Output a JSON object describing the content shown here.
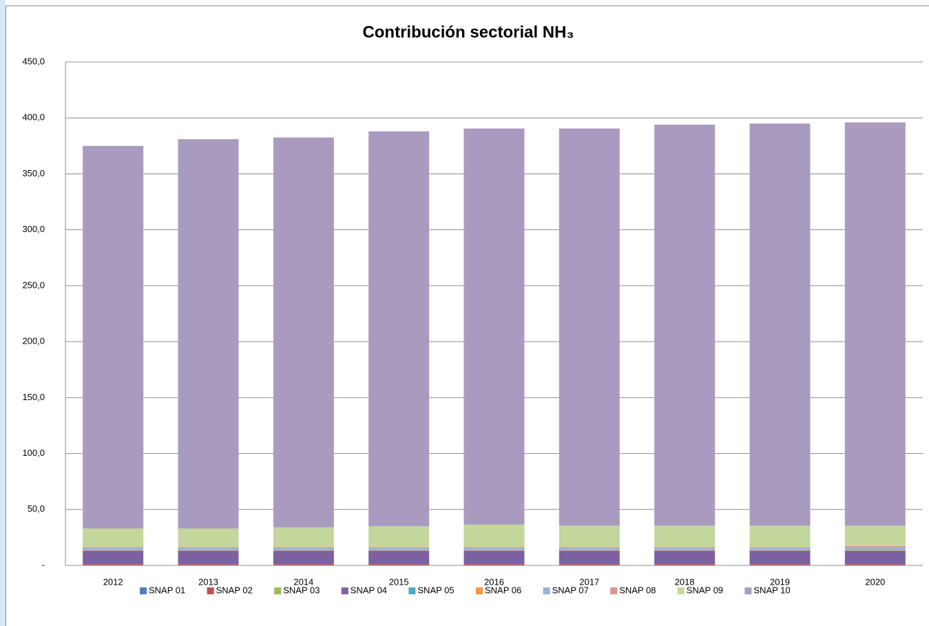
{
  "chart_data": {
    "type": "stacked_bar",
    "title": "Contribución sectorial NH₃",
    "categories": [
      "2012",
      "2013",
      "2014",
      "2015",
      "2016",
      "2017",
      "2018",
      "2019",
      "2020"
    ],
    "series": [
      {
        "name": "SNAP 01",
        "color": "#4f81bd",
        "values": [
          0.1,
          0.1,
          0.1,
          0.1,
          0.1,
          0.1,
          0.1,
          0.1,
          0.1
        ]
      },
      {
        "name": "SNAP 02",
        "color": "#c0504d",
        "values": [
          0.8,
          0.8,
          0.8,
          0.8,
          0.8,
          0.8,
          0.8,
          0.8,
          0.8
        ]
      },
      {
        "name": "SNAP 03",
        "color": "#9bbb59",
        "values": [
          0.1,
          0.1,
          0.1,
          0.1,
          0.1,
          0.1,
          0.1,
          0.1,
          0.1
        ]
      },
      {
        "name": "SNAP 04",
        "color": "#7d60a0",
        "values": [
          12,
          12,
          12,
          12,
          12,
          12,
          12,
          12,
          12
        ]
      },
      {
        "name": "SNAP 05",
        "color": "#4bacc6",
        "values": [
          0.3,
          0.3,
          0.3,
          0.3,
          0.3,
          0.3,
          0.3,
          0.3,
          0.3
        ]
      },
      {
        "name": "SNAP 06",
        "color": "#f79646",
        "values": [
          0.5,
          0.5,
          0.5,
          0.5,
          0.5,
          0.5,
          0.5,
          0.5,
          0.5
        ]
      },
      {
        "name": "SNAP 07",
        "color": "#95b3d7",
        "values": [
          2,
          2,
          2,
          2,
          2,
          2,
          2,
          2,
          2
        ]
      },
      {
        "name": "SNAP 08",
        "color": "#d99694",
        "values": [
          0.5,
          0.5,
          0.5,
          0.5,
          0.5,
          0.5,
          0.5,
          0.5,
          1.5
        ]
      },
      {
        "name": "SNAP 09",
        "color": "#c3d69b",
        "values": [
          16.7,
          16.7,
          17.7,
          18.7,
          20.2,
          19.2,
          19.2,
          19.2,
          18.2
        ]
      },
      {
        "name": "SNAP 10",
        "color": "#a99bc0",
        "values": [
          342,
          348,
          348.5,
          353,
          354,
          355,
          358.5,
          359.5,
          360.5
        ]
      }
    ],
    "ylim": [
      0,
      450
    ],
    "yticks": [
      {
        "value": 0,
        "label": "-"
      },
      {
        "value": 50,
        "label": "50,0"
      },
      {
        "value": 100,
        "label": "100,0"
      },
      {
        "value": 150,
        "label": "150,0"
      },
      {
        "value": 200,
        "label": "200,0"
      },
      {
        "value": 250,
        "label": "250,0"
      },
      {
        "value": 300,
        "label": "300,0"
      },
      {
        "value": 350,
        "label": "350,0"
      },
      {
        "value": 400,
        "label": "400,0"
      },
      {
        "value": 450,
        "label": "450,0"
      }
    ],
    "grid": true,
    "legend": "bottom"
  }
}
